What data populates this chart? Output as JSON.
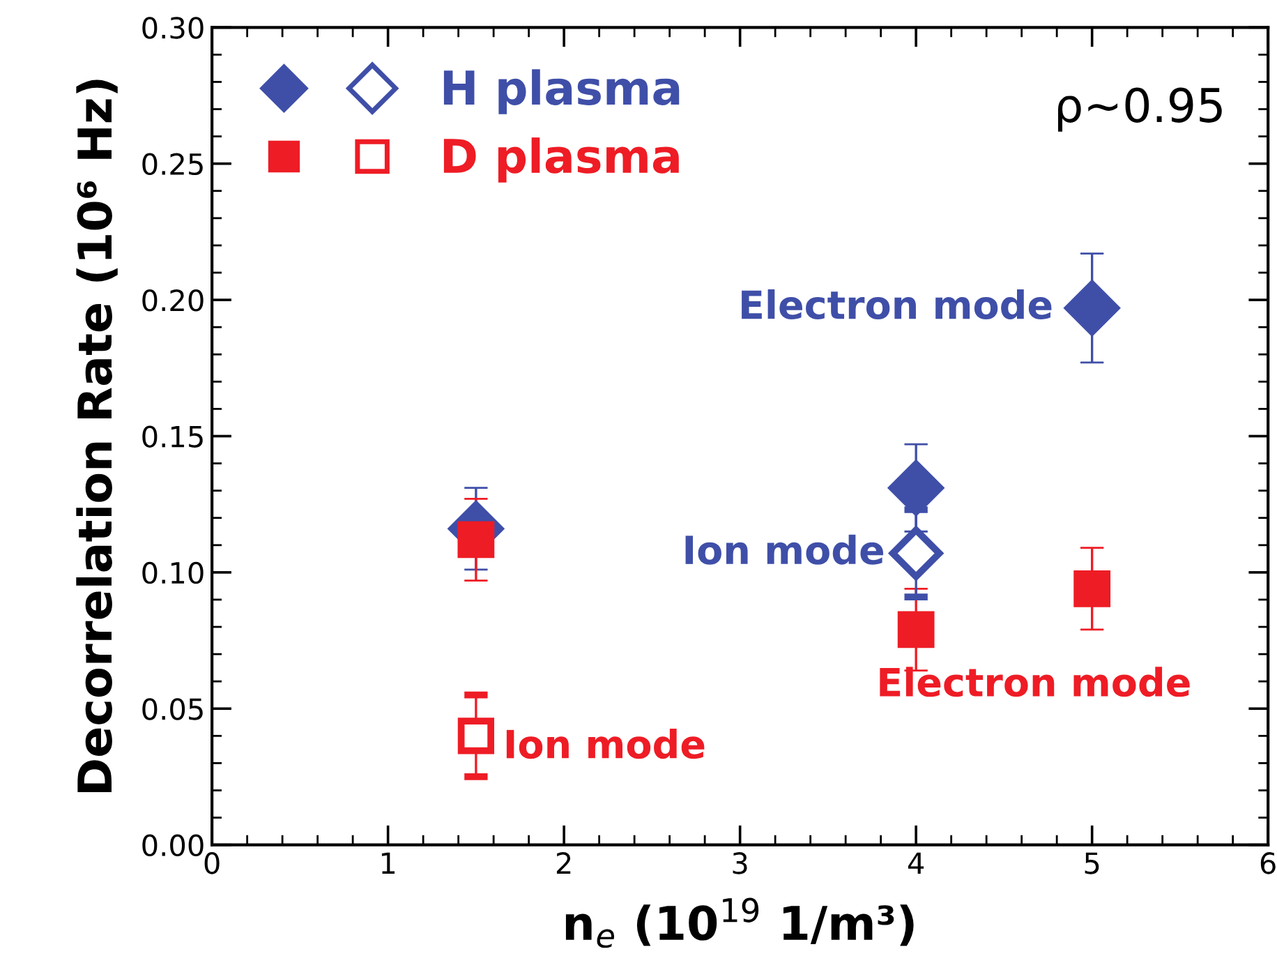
{
  "chart_data": {
    "type": "scatter",
    "xlabel": "n$_{e}$ (10$^{19}$ 1/m³)",
    "ylabel": "Decorrelation Rate (10⁶ Hz)",
    "series": [
      {
        "name": "H plasma",
        "color": "#3f4fa8",
        "marker": "diamond",
        "x": [
          1.5,
          4,
          5
        ],
        "values": [
          0.116,
          0.131,
          0.197
        ],
        "errors": [
          0.015,
          0.016,
          0.02
        ]
      },
      {
        "color": "#3f4fa8",
        "marker": "diamond",
        "x": [
          4
        ],
        "values": [
          0.107
        ],
        "errors": [
          0.016
        ]
      },
      {
        "name": "D plasma",
        "color": "#ee1c25",
        "marker": "square",
        "x": [
          1.5,
          4,
          5
        ],
        "values": [
          0.112,
          0.079,
          0.094
        ],
        "errors": [
          0.015,
          0.015,
          0.015
        ]
      },
      {
        "color": "#ee1c25",
        "marker": "square",
        "x": [
          1.5
        ],
        "values": [
          0.04
        ],
        "errors": [
          0.015
        ]
      }
    ],
    "annotations": [
      {
        "text": "Electron mode",
        "x": 5,
        "y": 0.197
      },
      {
        "text": "Ion mode",
        "x": 4,
        "y": 0.107
      },
      {
        "text": "Electron mode",
        "x": 5,
        "y": 0.094
      },
      {
        "text": "Ion mode",
        "x": 1.5,
        "y": 0.04
      },
      "ρ~0.95"
    ],
    "xlim": [
      0,
      6
    ],
    "ylim": [
      0,
      0.3
    ],
    "xticks": [
      0,
      1,
      2,
      3,
      4,
      5,
      6
    ],
    "yticks": [
      {
        "value": 0,
        "label": "0.00"
      },
      {
        "value": 0.05,
        "label": "0.05"
      },
      {
        "value": 0.1,
        "label": "0.10"
      },
      {
        "value": 0.15,
        "label": "0.15"
      },
      {
        "value": 0.2,
        "label": "0.20"
      },
      {
        "value": 0.25,
        "label": "0.25"
      },
      {
        "value": 0.3,
        "label": "0.30"
      }
    ],
    "grid": false,
    "legend": "top left"
  }
}
